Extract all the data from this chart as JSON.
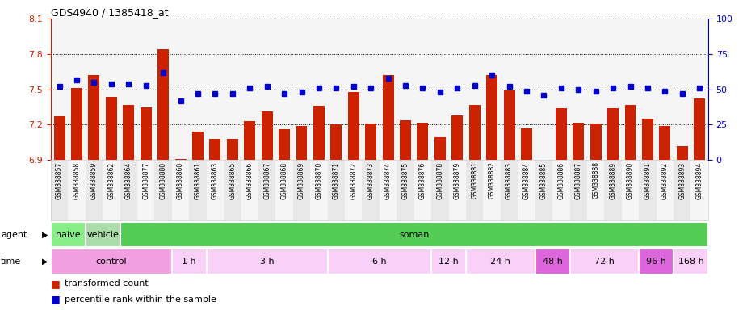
{
  "title": "GDS4940 / 1385418_at",
  "samples": [
    "GSM338857",
    "GSM338858",
    "GSM338859",
    "GSM338862",
    "GSM338864",
    "GSM338877",
    "GSM338880",
    "GSM338860",
    "GSM338861",
    "GSM338863",
    "GSM338865",
    "GSM338866",
    "GSM338867",
    "GSM338868",
    "GSM338869",
    "GSM338870",
    "GSM338871",
    "GSM338872",
    "GSM338873",
    "GSM338874",
    "GSM338875",
    "GSM338876",
    "GSM338878",
    "GSM338879",
    "GSM338881",
    "GSM338882",
    "GSM338883",
    "GSM338884",
    "GSM338885",
    "GSM338886",
    "GSM338887",
    "GSM338888",
    "GSM338889",
    "GSM338890",
    "GSM338891",
    "GSM338892",
    "GSM338893",
    "GSM338894"
  ],
  "bar_values": [
    7.27,
    7.51,
    7.62,
    7.44,
    7.37,
    7.35,
    7.84,
    6.91,
    7.14,
    7.08,
    7.08,
    7.23,
    7.31,
    7.16,
    7.19,
    7.36,
    7.2,
    7.48,
    7.21,
    7.62,
    7.24,
    7.22,
    7.09,
    7.28,
    7.37,
    7.62,
    7.49,
    7.17,
    6.9,
    7.34,
    7.22,
    7.21,
    7.34,
    7.37,
    7.25,
    7.19,
    7.02,
    7.42
  ],
  "blue_values": [
    52,
    57,
    55,
    54,
    54,
    53,
    62,
    42,
    47,
    47,
    47,
    51,
    52,
    47,
    48,
    51,
    51,
    52,
    51,
    58,
    53,
    51,
    48,
    51,
    53,
    60,
    52,
    49,
    46,
    51,
    50,
    49,
    51,
    52,
    51,
    49,
    47,
    51
  ],
  "ylim_left": [
    6.9,
    8.1
  ],
  "ylim_right": [
    0,
    100
  ],
  "yticks_left": [
    6.9,
    7.2,
    7.5,
    7.8,
    8.1
  ],
  "yticks_right": [
    0,
    25,
    50,
    75,
    100
  ],
  "bar_color": "#cc2200",
  "blue_color": "#0000cc",
  "agent_groups": [
    {
      "label": "naive",
      "start": 0,
      "end": 2,
      "color": "#88ee88"
    },
    {
      "label": "vehicle",
      "start": 2,
      "end": 4,
      "color": "#aaddaa"
    },
    {
      "label": "soman",
      "start": 4,
      "end": 38,
      "color": "#55cc55"
    }
  ],
  "time_groups": [
    {
      "label": "control",
      "start": 0,
      "end": 7,
      "color": "#f0a0e0"
    },
    {
      "label": "1 h",
      "start": 7,
      "end": 9,
      "color": "#f8d0f8"
    },
    {
      "label": "3 h",
      "start": 9,
      "end": 16,
      "color": "#f8d0f8"
    },
    {
      "label": "6 h",
      "start": 16,
      "end": 22,
      "color": "#f8d0f8"
    },
    {
      "label": "12 h",
      "start": 22,
      "end": 24,
      "color": "#f8d0f8"
    },
    {
      "label": "24 h",
      "start": 24,
      "end": 28,
      "color": "#f8d0f8"
    },
    {
      "label": "48 h",
      "start": 28,
      "end": 30,
      "color": "#dd66dd"
    },
    {
      "label": "72 h",
      "start": 30,
      "end": 34,
      "color": "#f8d0f8"
    },
    {
      "label": "96 h",
      "start": 34,
      "end": 36,
      "color": "#dd66dd"
    },
    {
      "label": "168 h",
      "start": 36,
      "end": 38,
      "color": "#f8d0f8"
    }
  ],
  "legend_items": [
    {
      "label": "transformed count",
      "color": "#cc2200"
    },
    {
      "label": "percentile rank within the sample",
      "color": "#0000cc"
    }
  ]
}
